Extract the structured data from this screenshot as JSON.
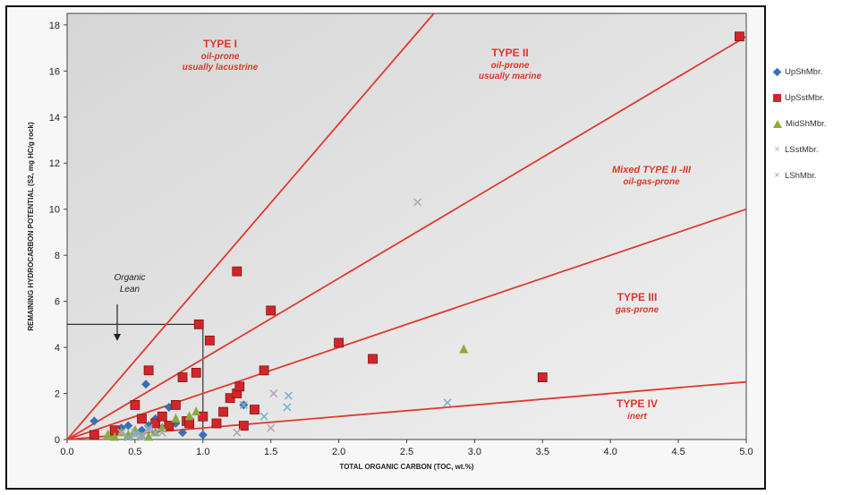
{
  "chart_data": {
    "type": "scatter",
    "xlabel": "TOTAL ORGANIC CARBON (TOC, wt.%)",
    "ylabel": "REMAINING HYDROCARBON POTENTIAL (S2, mg HC/g rock)",
    "xlim": [
      0,
      5
    ],
    "ylim": [
      0,
      18.5
    ],
    "xticks": [
      "0.0",
      "0.5",
      "1.0",
      "1.5",
      "2.0",
      "2.5",
      "3.0",
      "3.5",
      "4.0",
      "4.5",
      "5.0"
    ],
    "yticks": [
      "0",
      "2",
      "4",
      "6",
      "8",
      "10",
      "12",
      "14",
      "16",
      "18"
    ],
    "grid": false,
    "legend_position": "right",
    "type_lines": [
      {
        "name": "Type I / II boundary",
        "x": [
          0,
          2.7
        ],
        "y": [
          0,
          18.5
        ]
      },
      {
        "name": "Type II / II-III boundary",
        "x": [
          0,
          5
        ],
        "y": [
          0,
          17.5
        ]
      },
      {
        "name": "Type II-III / III boundary",
        "x": [
          0,
          5
        ],
        "y": [
          0,
          10
        ]
      },
      {
        "name": "Type III / IV boundary",
        "x": [
          0,
          5
        ],
        "y": [
          0,
          2.5
        ]
      }
    ],
    "organic_lean_box": {
      "x": [
        0,
        1.0
      ],
      "y": [
        0,
        5.0
      ]
    },
    "annotations": {
      "type1": {
        "title": "TYPE I",
        "l1": "oil-prone",
        "l2": "usually lacustrine"
      },
      "type2": {
        "title": "TYPE II",
        "l1": "oil-prone",
        "l2": "usually marine"
      },
      "type23": {
        "title": "Mixed TYPE II -III",
        "l1": "oil-gas-prone"
      },
      "type3": {
        "title": "TYPE III",
        "l1": "gas-prone"
      },
      "type4": {
        "title": "TYPE  IV",
        "l1": "inert"
      },
      "lean": {
        "l1": "Organic",
        "l2": "Lean"
      }
    },
    "series": [
      {
        "name": "UpShMbr.",
        "color": "#3a6fb0",
        "marker": "diamond",
        "x": [
          0.2,
          0.35,
          0.4,
          0.45,
          0.5,
          0.55,
          0.58,
          0.6,
          0.65,
          0.7,
          0.75,
          0.8,
          0.85,
          0.9,
          1.0,
          1.3
        ],
        "y": [
          0.8,
          0.3,
          0.5,
          0.6,
          0.3,
          0.4,
          2.4,
          0.6,
          0.9,
          0.5,
          1.4,
          0.7,
          0.3,
          0.9,
          0.2,
          1.5
        ]
      },
      {
        "name": "UpSstMbr.",
        "color": "#d0262a",
        "marker": "square",
        "x": [
          0.2,
          0.35,
          0.5,
          0.55,
          0.6,
          0.65,
          0.7,
          0.75,
          0.8,
          0.85,
          0.88,
          0.9,
          0.95,
          0.97,
          1.0,
          1.05,
          1.1,
          1.15,
          1.2,
          1.25,
          1.27,
          1.3,
          1.38,
          1.45,
          1.5,
          1.25,
          2.0,
          2.25,
          3.5,
          4.95
        ],
        "y": [
          0.2,
          0.4,
          1.5,
          0.9,
          3.0,
          0.7,
          1.0,
          0.6,
          1.5,
          2.7,
          0.8,
          0.7,
          2.9,
          5.0,
          1.0,
          4.3,
          0.7,
          1.2,
          1.8,
          2.0,
          2.3,
          0.6,
          1.3,
          3.0,
          5.6,
          7.3,
          4.2,
          3.5,
          2.7,
          17.5
        ]
      },
      {
        "name": "MidShMbr.",
        "color": "#8aaa3a",
        "marker": "triangle",
        "x": [
          0.3,
          0.35,
          0.4,
          0.45,
          0.5,
          0.55,
          0.6,
          0.65,
          0.7,
          0.8,
          0.9,
          0.95,
          2.92
        ],
        "y": [
          0.2,
          0.1,
          0.3,
          0.2,
          0.4,
          0.15,
          0.1,
          0.3,
          0.5,
          0.9,
          1.0,
          1.2,
          3.9
        ]
      },
      {
        "name": "LSstMbr.",
        "color": "#b0a8b8",
        "marker": "x",
        "x": [
          0.4,
          0.5,
          0.55,
          0.6,
          0.7,
          1.25,
          1.5,
          1.52,
          2.58
        ],
        "y": [
          0.3,
          0.2,
          0.1,
          0.4,
          0.3,
          0.3,
          0.5,
          2.0,
          10.3
        ]
      },
      {
        "name": "LShMbr.",
        "color": "#7fb0c8",
        "marker": "x",
        "x": [
          0.45,
          0.5,
          0.55,
          0.6,
          0.65,
          1.3,
          1.45,
          1.62,
          1.63,
          2.8
        ],
        "y": [
          0.1,
          0.3,
          0.2,
          0.5,
          0.3,
          1.5,
          1.0,
          1.4,
          1.9,
          1.6
        ]
      }
    ]
  }
}
